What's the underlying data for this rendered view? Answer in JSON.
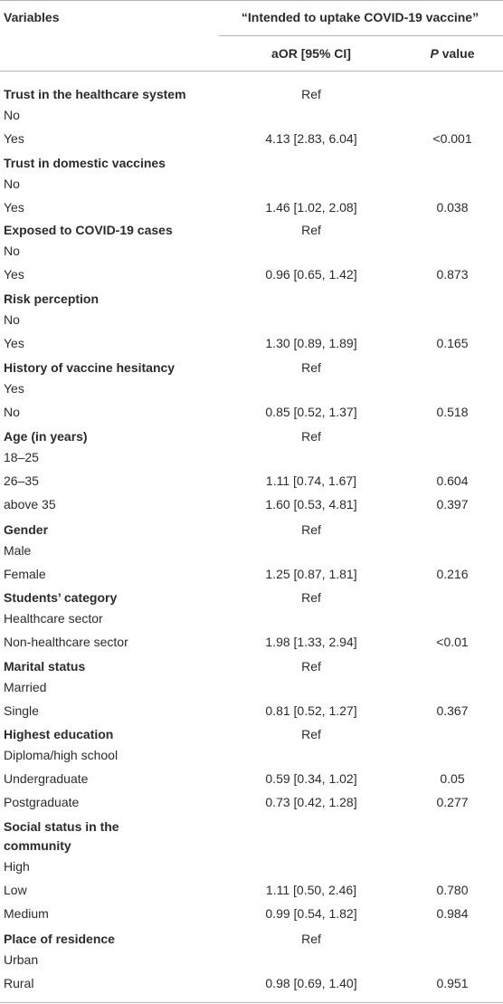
{
  "header": {
    "variables": "Variables",
    "outcome": "“Intended to uptake COVID-19 vaccine”",
    "aor": "aOR [95% CI]",
    "p_italic": "P",
    "p_rest": " value"
  },
  "rows": [
    {
      "text": "Trust in the healthcare system",
      "bold": true,
      "aor": "Ref",
      "p": ""
    },
    {
      "text": "No",
      "bold": false,
      "aor": "",
      "p": ""
    },
    {
      "text": "Yes",
      "bold": false,
      "aor": "4.13 [2.83, 6.04]",
      "p": "<0.001"
    },
    {
      "text": "Trust in domestic vaccines",
      "bold": true,
      "aor": "",
      "p": ""
    },
    {
      "text": "No",
      "bold": false,
      "aor": "",
      "p": ""
    },
    {
      "text": "Yes",
      "bold": false,
      "aor": "1.46 [1.02, 2.08]",
      "p": "0.038"
    },
    {
      "text": "Exposed to COVID-19 cases",
      "bold": true,
      "aor": "Ref",
      "p": ""
    },
    {
      "text": "No",
      "bold": false,
      "aor": "",
      "p": ""
    },
    {
      "text": "Yes",
      "bold": false,
      "aor": "0.96 [0.65, 1.42]",
      "p": "0.873"
    },
    {
      "text": "Risk perception",
      "bold": true,
      "aor": "",
      "p": ""
    },
    {
      "text": "No",
      "bold": false,
      "aor": "",
      "p": ""
    },
    {
      "text": "Yes",
      "bold": false,
      "aor": "1.30 [0.89, 1.89]",
      "p": "0.165"
    },
    {
      "text": "History of vaccine hesitancy",
      "bold": true,
      "aor": "Ref",
      "p": ""
    },
    {
      "text": "Yes",
      "bold": false,
      "aor": "",
      "p": ""
    },
    {
      "text": "No",
      "bold": false,
      "aor": "0.85 [0.52, 1.37]",
      "p": "0.518"
    },
    {
      "text": "Age (in years)",
      "bold": true,
      "aor": "Ref",
      "p": ""
    },
    {
      "text": "18–25",
      "bold": false,
      "aor": "",
      "p": ""
    },
    {
      "text": "26–35",
      "bold": false,
      "aor": "1.11 [0.74, 1.67]",
      "p": "0.604"
    },
    {
      "text": "above 35",
      "bold": false,
      "aor": "1.60 [0.53, 4.81]",
      "p": "0.397"
    },
    {
      "text": "Gender",
      "bold": true,
      "aor": "Ref",
      "p": ""
    },
    {
      "text": "Male",
      "bold": false,
      "aor": "",
      "p": ""
    },
    {
      "text": "Female",
      "bold": false,
      "aor": "1.25 [0.87, 1.81]",
      "p": "0.216"
    },
    {
      "text": "Students’ category",
      "bold": true,
      "aor": "Ref",
      "p": ""
    },
    {
      "text": "Healthcare sector",
      "bold": false,
      "aor": "",
      "p": ""
    },
    {
      "text": "Non-healthcare sector",
      "bold": false,
      "aor": "1.98 [1.33, 2.94]",
      "p": "<0.01"
    },
    {
      "text": "Marital status",
      "bold": true,
      "aor": "Ref",
      "p": ""
    },
    {
      "text": "Married",
      "bold": false,
      "aor": "",
      "p": ""
    },
    {
      "text": "Single",
      "bold": false,
      "aor": "0.81 [0.52, 1.27]",
      "p": "0.367"
    },
    {
      "text": "Highest education",
      "bold": true,
      "aor": "Ref",
      "p": ""
    },
    {
      "text": "Diploma/high school",
      "bold": false,
      "aor": "",
      "p": ""
    },
    {
      "text": "Undergraduate",
      "bold": false,
      "aor": "0.59 [0.34, 1.02]",
      "p": "0.05"
    },
    {
      "text": "Postgraduate",
      "bold": false,
      "aor": "0.73 [0.42, 1.28]",
      "p": "0.277"
    },
    {
      "text": "Social status in the\ncommunity",
      "bold": true,
      "aor": "",
      "p": ""
    },
    {
      "text": "High",
      "bold": false,
      "aor": "",
      "p": ""
    },
    {
      "text": "Low",
      "bold": false,
      "aor": "1.11 [0.50, 2.46]",
      "p": "0.780"
    },
    {
      "text": "Medium",
      "bold": false,
      "aor": "0.99 [0.54, 1.82]",
      "p": "0.984"
    },
    {
      "text": "Place of residence",
      "bold": true,
      "aor": "Ref",
      "p": ""
    },
    {
      "text": "Urban",
      "bold": false,
      "aor": "",
      "p": ""
    },
    {
      "text": "Rural",
      "bold": false,
      "aor": "0.98 [0.69, 1.40]",
      "p": "0.951"
    }
  ]
}
